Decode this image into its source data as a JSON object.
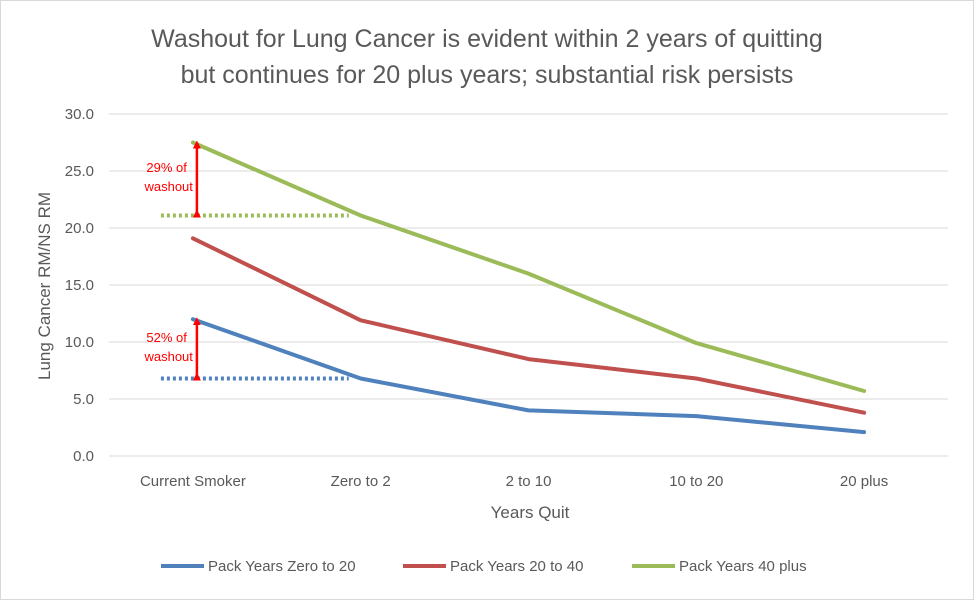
{
  "chart_data": {
    "type": "line",
    "title_lines": [
      "Washout for Lung Cancer is evident within 2 years of quitting",
      "but continues for 20 plus years; substantial risk persists"
    ],
    "xlabel": "Years Quit",
    "ylabel": "Lung Cancer RM/NS RM",
    "categories": [
      "Current Smoker",
      "Zero to 2",
      "2 to 10",
      "10 to 20",
      "20 plus"
    ],
    "ylim": [
      0,
      30
    ],
    "yticks": [
      "0.0",
      "5.0",
      "10.0",
      "15.0",
      "20.0",
      "25.0",
      "30.0"
    ],
    "grid": true,
    "legend_position": "bottom",
    "series": [
      {
        "name": "Pack Years Zero to 20",
        "color": "#4f81bd",
        "values": [
          12.0,
          6.8,
          4.0,
          3.5,
          2.1
        ]
      },
      {
        "name": "Pack Years 20 to 40",
        "color": "#c0504d",
        "values": [
          19.1,
          11.9,
          8.5,
          6.8,
          3.8
        ]
      },
      {
        "name": "Pack Years 40 plus",
        "color": "#9bbb59",
        "values": [
          27.5,
          21.1,
          16.0,
          9.9,
          5.7
        ]
      }
    ],
    "annotations": [
      {
        "series": 2,
        "line1": "29% of",
        "line2": "washout",
        "from": 27.5,
        "to": 21.1,
        "color": "#ff0000"
      },
      {
        "series": 0,
        "line1": "52% of",
        "line2": "washout",
        "from": 12.0,
        "to": 6.8,
        "color": "#ff0000"
      }
    ]
  }
}
